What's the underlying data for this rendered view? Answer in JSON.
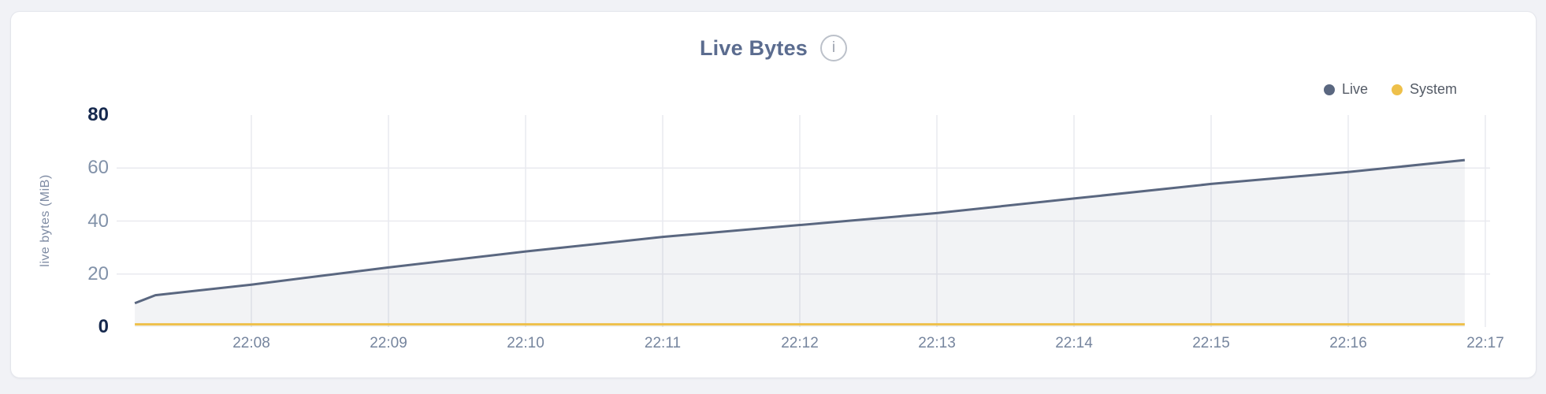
{
  "header": {
    "title": "Live Bytes",
    "info_glyph": "i"
  },
  "legend": {
    "position": "top-right",
    "items": [
      {
        "label": "Live",
        "color": "#5a6780"
      },
      {
        "label": "System",
        "color": "#eec04a"
      }
    ]
  },
  "colors": {
    "page_bg": "#f1f2f6",
    "card_bg": "#ffffff",
    "card_border": "#e4e6ec",
    "title": "#5b6c8f",
    "grid": "#e9eaef",
    "axis_label_major": "#16294e",
    "axis_label_minor": "#8292a9",
    "xtick_label": "#76859e",
    "legend_text": "#545b66",
    "live_line": "#5a6780",
    "live_fill": "rgba(90,103,128,0.08)",
    "system_line": "#eec04a",
    "info_icon": "#9aa1ad"
  },
  "chart_data": {
    "type": "area",
    "title": "Live Bytes",
    "xlabel": "",
    "ylabel": "live bytes (MiB)",
    "ylim": [
      0,
      80
    ],
    "grid": true,
    "legend_position": "top-right",
    "x_unit": "minutes after 22:00",
    "x_range": [
      7.15,
      16.85
    ],
    "yticks": [
      {
        "value": 0,
        "label": "0",
        "emphasis": true
      },
      {
        "value": 20,
        "label": "20",
        "emphasis": false
      },
      {
        "value": 40,
        "label": "40",
        "emphasis": false
      },
      {
        "value": 60,
        "label": "60",
        "emphasis": false
      },
      {
        "value": 80,
        "label": "80",
        "emphasis": true
      }
    ],
    "xticks": [
      {
        "minute": 8,
        "label": "22:08"
      },
      {
        "minute": 9,
        "label": "22:09"
      },
      {
        "minute": 10,
        "label": "22:10"
      },
      {
        "minute": 11,
        "label": "22:11"
      },
      {
        "minute": 12,
        "label": "22:12"
      },
      {
        "minute": 13,
        "label": "22:13"
      },
      {
        "minute": 14,
        "label": "22:14"
      },
      {
        "minute": 15,
        "label": "22:15"
      },
      {
        "minute": 16,
        "label": "22:16"
      },
      {
        "minute": 17,
        "label": "22:17"
      }
    ],
    "series": [
      {
        "name": "Live",
        "color": "#5a6780",
        "fill": "rgba(90,103,128,0.08)",
        "points": [
          [
            7.15,
            9
          ],
          [
            7.3,
            12
          ],
          [
            8,
            16
          ],
          [
            9,
            22.5
          ],
          [
            10,
            28.5
          ],
          [
            11,
            34
          ],
          [
            12,
            38.5
          ],
          [
            13,
            43
          ],
          [
            14,
            48.5
          ],
          [
            15,
            54
          ],
          [
            16,
            58.5
          ],
          [
            16.85,
            63
          ]
        ]
      },
      {
        "name": "System",
        "color": "#eec04a",
        "fill": "none",
        "points": [
          [
            7.15,
            1
          ],
          [
            16.85,
            1
          ]
        ]
      }
    ]
  }
}
